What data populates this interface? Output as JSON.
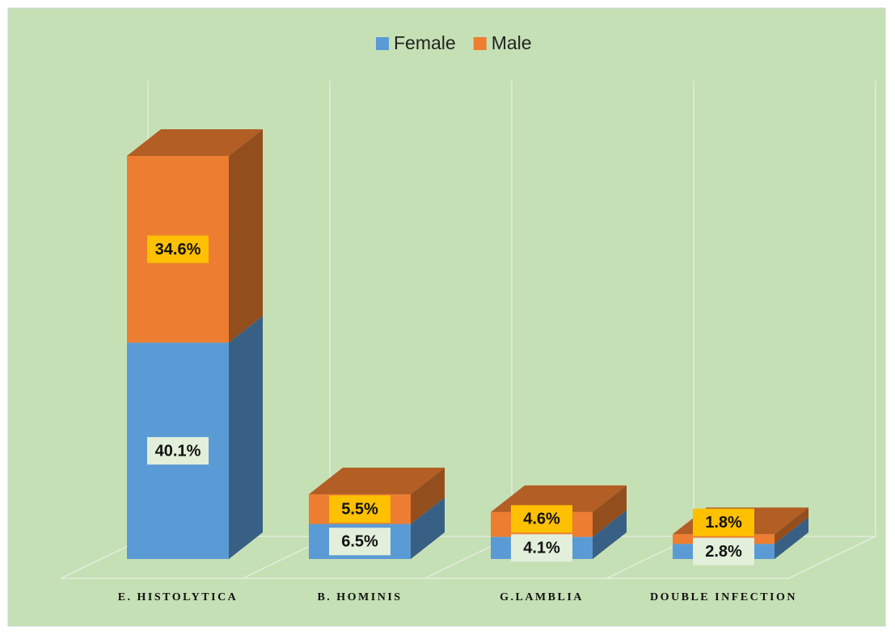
{
  "chart_data": {
    "type": "bar3d_stacked",
    "categories": [
      "E. HISTOLYTICA",
      "B. HOMINIS",
      "G.LAMBLIA",
      "DOUBLE INFECTION"
    ],
    "series": [
      {
        "name": "Female",
        "color": "#5b9bd5",
        "values": [
          40.1,
          6.5,
          4.1,
          2.8
        ],
        "value_labels": [
          "40.1%",
          "6.5%",
          "4.1%",
          "2.8%"
        ]
      },
      {
        "name": "Male",
        "color": "#ed7d31",
        "values": [
          34.6,
          5.5,
          4.6,
          1.8
        ],
        "value_labels": [
          "34.6%",
          "5.5%",
          "4.6%",
          "1.8%"
        ]
      }
    ],
    "legend": "top"
  }
}
